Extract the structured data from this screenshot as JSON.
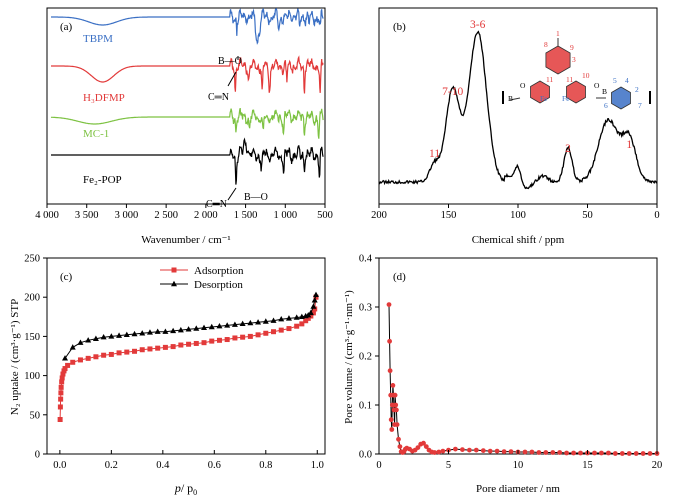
{
  "chart_data": [
    {
      "panel": "(a)",
      "type": "line",
      "xlabel": "Wavenumber / cm⁻¹",
      "xlim": [
        4000,
        500
      ],
      "x_ticks": [
        "4 000",
        "3 500",
        "3 000",
        "2 500",
        "2 000",
        "1 500",
        "1 000",
        "500"
      ],
      "x_tick_values": [
        4000,
        3500,
        3000,
        2500,
        2000,
        1500,
        1000,
        500
      ],
      "series": [
        {
          "name": "TBPM",
          "color": "#3a6fc4"
        },
        {
          "name": "H₃DFMP",
          "color": "#e23a3a"
        },
        {
          "name": "MC-1",
          "color": "#7dc242"
        },
        {
          "name": "Fe₂-POP",
          "color": "#000000"
        }
      ],
      "annotations": [
        "B—O",
        "C═N",
        "C═N",
        "B—O"
      ]
    },
    {
      "panel": "(b)",
      "type": "line",
      "xlabel": "Chemical shift / ppm",
      "xlim": [
        200,
        0
      ],
      "x_ticks": [
        "200",
        "150",
        "100",
        "50",
        "0"
      ],
      "x_tick_values": [
        200,
        150,
        100,
        50,
        0
      ],
      "peak_labels": [
        {
          "label": "3-6",
          "ppm": 129
        },
        {
          "label": "7-10",
          "ppm": 147
        },
        {
          "label": "11",
          "ppm": 160
        },
        {
          "label": "2",
          "ppm": 64
        },
        {
          "label": "1",
          "ppm": 20
        }
      ],
      "structure_labels": [
        "1",
        "8",
        "9",
        "3",
        "10",
        "11",
        "11",
        "Fe",
        "Fe",
        "B",
        "B",
        "O",
        "O",
        "5",
        "4",
        "2",
        "6",
        "7"
      ]
    },
    {
      "panel": "(c)",
      "type": "line",
      "xlabel_main": "p",
      "xlabel_sub": "/ p",
      "xlabel_subscript": "0",
      "ylabel": "N₂ uptake / (cm³·g⁻¹) STP",
      "xlim": [
        -0.05,
        1.03
      ],
      "ylim": [
        0,
        250
      ],
      "x_ticks": [
        "0.0",
        "0.2",
        "0.4",
        "0.6",
        "0.8",
        "1.0"
      ],
      "x_tick_values": [
        0,
        0.2,
        0.4,
        0.6,
        0.8,
        1.0
      ],
      "y_ticks": [
        "0",
        "50",
        "100",
        "150",
        "200",
        "250"
      ],
      "y_tick_values": [
        0,
        50,
        100,
        150,
        200,
        250
      ],
      "legend": "top-center",
      "series": [
        {
          "name": "Adsorption",
          "color": "#e23a3a",
          "marker": "square",
          "x": [
            0.001,
            0.002,
            0.003,
            0.004,
            0.005,
            0.007,
            0.009,
            0.012,
            0.016,
            0.02,
            0.03,
            0.05,
            0.08,
            0.11,
            0.14,
            0.17,
            0.2,
            0.23,
            0.26,
            0.29,
            0.32,
            0.35,
            0.38,
            0.41,
            0.44,
            0.47,
            0.5,
            0.53,
            0.56,
            0.59,
            0.62,
            0.65,
            0.68,
            0.71,
            0.74,
            0.77,
            0.8,
            0.83,
            0.86,
            0.89,
            0.92,
            0.94,
            0.955,
            0.965,
            0.975,
            0.985,
            0.99,
            0.995
          ],
          "y": [
            44,
            60,
            70,
            78,
            85,
            92,
            97,
            102,
            106,
            109,
            113,
            117,
            120,
            122,
            124,
            126,
            127,
            129,
            130,
            131,
            133,
            134,
            135,
            136,
            137,
            139,
            140,
            141,
            142,
            144,
            145,
            146,
            148,
            149,
            150,
            152,
            154,
            156,
            158,
            160,
            163,
            166,
            170,
            173,
            176,
            180,
            185,
            200
          ]
        },
        {
          "name": "Desorption",
          "color": "#000000",
          "marker": "triangle",
          "x": [
            0.995,
            0.99,
            0.985,
            0.975,
            0.965,
            0.955,
            0.94,
            0.92,
            0.89,
            0.86,
            0.83,
            0.8,
            0.77,
            0.74,
            0.71,
            0.68,
            0.65,
            0.62,
            0.59,
            0.56,
            0.53,
            0.5,
            0.47,
            0.44,
            0.41,
            0.38,
            0.35,
            0.32,
            0.29,
            0.26,
            0.23,
            0.2,
            0.17,
            0.14,
            0.11,
            0.08,
            0.05,
            0.02
          ],
          "y": [
            203,
            196,
            188,
            180,
            177,
            176,
            175,
            174,
            173,
            172,
            170,
            169,
            168,
            167,
            166,
            165,
            164,
            163,
            162,
            161,
            160,
            159,
            158,
            157,
            156,
            156,
            155,
            154,
            153,
            152,
            151,
            150,
            149,
            147,
            145,
            142,
            136,
            122
          ]
        }
      ]
    },
    {
      "panel": "(d)",
      "type": "line",
      "xlabel": "Pore diameter / nm",
      "ylabel": "Pore volume / (cm³·g⁻¹·nm⁻¹)",
      "xlim": [
        0,
        20
      ],
      "ylim": [
        0,
        0.4
      ],
      "x_ticks": [
        "0",
        "5",
        "10",
        "15",
        "20"
      ],
      "x_tick_values": [
        0,
        5,
        10,
        15,
        20
      ],
      "y_ticks": [
        "0.0",
        "0.1",
        "0.2",
        "0.3",
        "0.4"
      ],
      "y_tick_values": [
        0,
        0.1,
        0.2,
        0.3,
        0.4
      ],
      "series": [
        {
          "name": "",
          "color": "#e23a3a",
          "marker": "circle",
          "x": [
            0.72,
            0.76,
            0.8,
            0.84,
            0.88,
            0.92,
            0.96,
            1.0,
            1.04,
            1.08,
            1.12,
            1.16,
            1.2,
            1.25,
            1.3,
            1.4,
            1.5,
            1.6,
            1.7,
            1.8,
            1.9,
            2.0,
            2.2,
            2.4,
            2.6,
            2.8,
            3.0,
            3.2,
            3.4,
            3.6,
            3.8,
            4.0,
            4.3,
            4.6,
            5.0,
            5.5,
            6,
            6.5,
            7,
            7.5,
            8,
            8.5,
            9,
            9.5,
            10,
            10.5,
            11,
            11.5,
            12,
            12.5,
            13,
            13.5,
            14,
            14.5,
            15,
            15.5,
            16,
            16.5,
            17,
            17.5,
            18,
            18.5,
            19,
            19.5,
            20
          ],
          "y": [
            0.305,
            0.23,
            0.17,
            0.12,
            0.07,
            0.05,
            0.1,
            0.14,
            0.12,
            0.09,
            0.06,
            0.12,
            0.1,
            0.09,
            0.06,
            0.03,
            0.015,
            0.005,
            0.003,
            0.005,
            0.01,
            0.012,
            0.01,
            0.006,
            0.008,
            0.013,
            0.02,
            0.022,
            0.015,
            0.008,
            0.004,
            0.003,
            0.004,
            0.006,
            0.008,
            0.01,
            0.009,
            0.008,
            0.008,
            0.007,
            0.006,
            0.006,
            0.005,
            0.005,
            0.004,
            0.004,
            0.004,
            0.003,
            0.003,
            0.003,
            0.003,
            0.002,
            0.002,
            0.002,
            0.002,
            0.002,
            0.002,
            0.002,
            0.001,
            0.001,
            0.001,
            0.001,
            0.001,
            0.001,
            0.001
          ]
        }
      ]
    }
  ]
}
